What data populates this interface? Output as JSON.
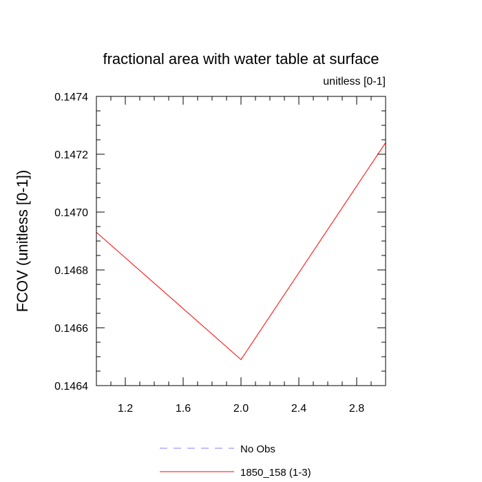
{
  "chart_data": {
    "type": "line",
    "title": "fractional area with water table at surface",
    "subtitle": "unitless [0-1]",
    "xlabel": "",
    "ylabel": "FCOV  (unitless [0-1])",
    "xlim": [
      1.0,
      3.0
    ],
    "ylim": [
      0.1464,
      0.1474
    ],
    "x_ticks": [
      1.2,
      1.6,
      2.0,
      2.4,
      2.8
    ],
    "x_tick_labels": [
      "1.2",
      "1.6",
      "2.0",
      "2.4",
      "2.8"
    ],
    "x_minor_step": 0.1,
    "y_ticks": [
      0.1464,
      0.1466,
      0.1468,
      0.147,
      0.1472,
      0.1474
    ],
    "y_tick_labels": [
      "0.1464",
      "0.1466",
      "0.1468",
      "0.1470",
      "0.1472",
      "0.1474"
    ],
    "y_minor_step": 5e-05,
    "grid": false,
    "legend_position": "bottom",
    "series": [
      {
        "name": "1850_158 (1-3)",
        "color": "#ff0000",
        "dash": "solid",
        "x": [
          1,
          2,
          3
        ],
        "y": [
          0.14693,
          0.14649,
          0.14724
        ]
      }
    ],
    "legend": [
      {
        "label": "No Obs",
        "color": "#8080ff",
        "dash": "dashed"
      },
      {
        "label": "1850_158 (1-3)",
        "color": "#ff0000",
        "dash": "solid"
      }
    ]
  }
}
